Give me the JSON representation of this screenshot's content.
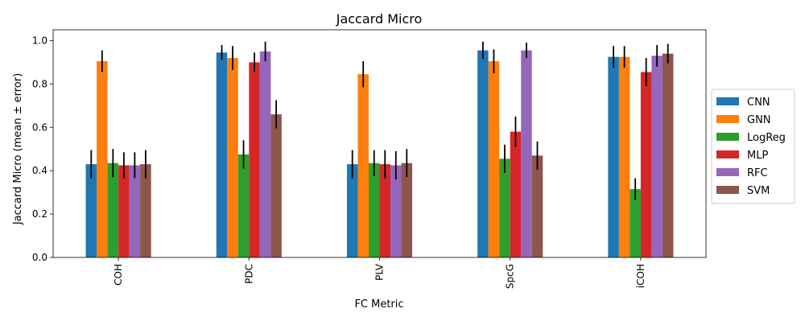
{
  "chart_data": {
    "type": "bar",
    "title": "Jaccard Micro",
    "xlabel": "FC Metric",
    "ylabel": "Jaccard Micro (mean ± error)",
    "ylim": [
      0,
      1.05
    ],
    "yticks": [
      0.0,
      0.2,
      0.4,
      0.6,
      0.8,
      1.0
    ],
    "ytick_labels": [
      "0.0",
      "0.2",
      "0.4",
      "0.6",
      "0.8",
      "1.0"
    ],
    "categories": [
      "COH",
      "PDC",
      "PLV",
      "SpcG",
      "iCOH"
    ],
    "grid": false,
    "legend_position": "right-outside",
    "series": [
      {
        "name": "CNN",
        "color": "#1f77b4",
        "values": [
          0.43,
          0.945,
          0.43,
          0.955,
          0.925
        ],
        "errors": [
          0.065,
          0.035,
          0.065,
          0.04,
          0.05
        ]
      },
      {
        "name": "GNN",
        "color": "#ff7f0e",
        "values": [
          0.905,
          0.92,
          0.845,
          0.905,
          0.925
        ],
        "errors": [
          0.05,
          0.055,
          0.06,
          0.055,
          0.05
        ]
      },
      {
        "name": "LogReg",
        "color": "#2ca02c",
        "values": [
          0.435,
          0.475,
          0.435,
          0.455,
          0.315
        ],
        "errors": [
          0.065,
          0.065,
          0.06,
          0.065,
          0.05
        ]
      },
      {
        "name": "MLP",
        "color": "#d62728",
        "values": [
          0.425,
          0.9,
          0.43,
          0.58,
          0.855
        ],
        "errors": [
          0.06,
          0.045,
          0.065,
          0.07,
          0.065
        ]
      },
      {
        "name": "RFC",
        "color": "#9467bd",
        "values": [
          0.425,
          0.95,
          0.425,
          0.955,
          0.93
        ],
        "errors": [
          0.06,
          0.045,
          0.065,
          0.035,
          0.05
        ]
      },
      {
        "name": "SVM",
        "color": "#8c564b",
        "values": [
          0.43,
          0.66,
          0.435,
          0.47,
          0.94
        ],
        "errors": [
          0.065,
          0.065,
          0.065,
          0.065,
          0.045
        ]
      }
    ]
  }
}
